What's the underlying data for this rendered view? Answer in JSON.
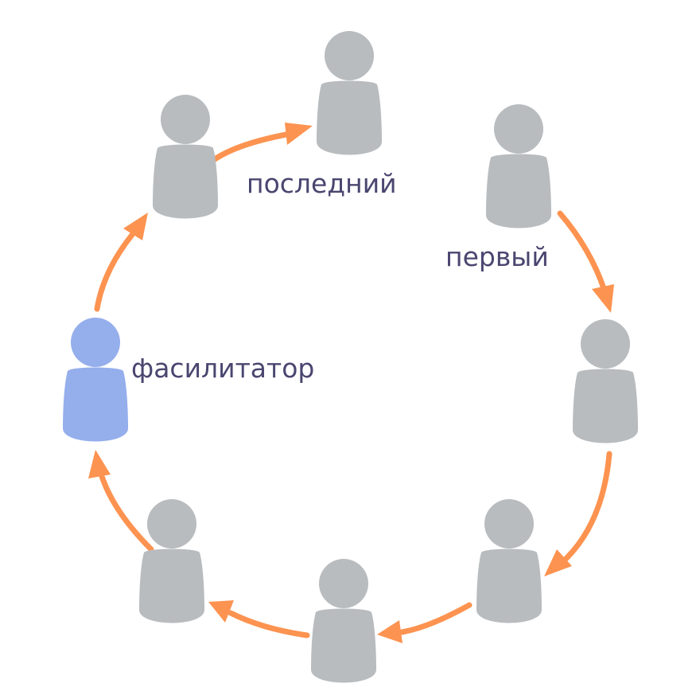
{
  "labels": {
    "last": "последний",
    "first": "первый",
    "facilitator": "фасилитатор"
  },
  "colors": {
    "person": "#b8bcbf",
    "facilitator": "#95aeec",
    "arrow": "#fd9350",
    "label": "#4a4670"
  },
  "people": [
    {
      "role": "participant"
    },
    {
      "role": "participant"
    },
    {
      "role": "participant"
    },
    {
      "role": "participant"
    },
    {
      "role": "participant"
    },
    {
      "role": "participant"
    },
    {
      "role": "participant"
    },
    {
      "role": "facilitator"
    }
  ]
}
